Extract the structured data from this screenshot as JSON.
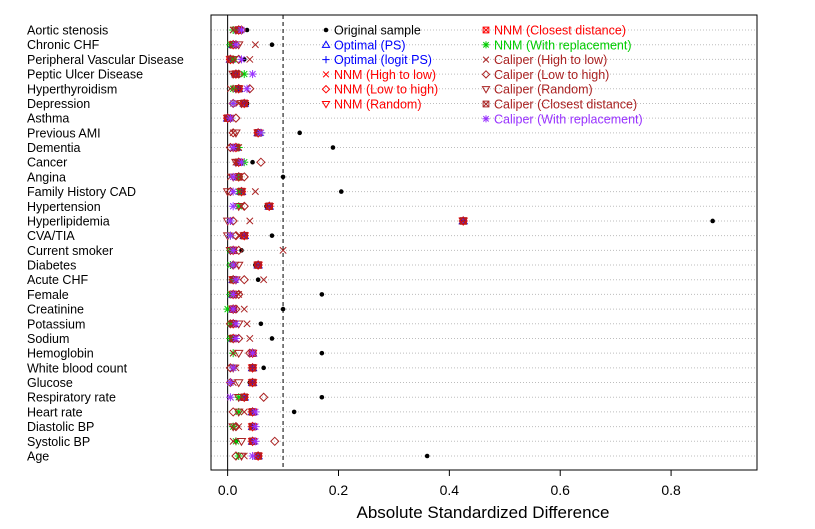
{
  "chart_data": {
    "type": "scatter",
    "title": "",
    "xlabel": "Absolute Standardized Difference",
    "ylabel": "",
    "xlim": [
      -0.03,
      0.955
    ],
    "x_ticks": [
      0.0,
      0.2,
      0.4,
      0.6,
      0.8
    ],
    "x_tick_labels": [
      "0.0",
      "0.2",
      "0.4",
      "0.6",
      "0.8"
    ],
    "reference_line": 0.1,
    "grid": "dotted horizontal",
    "legend_position": "top-right",
    "categories": [
      "Aortic stenosis",
      "Chronic CHF",
      "Peripheral Vascular Disease",
      "Peptic Ulcer Disease",
      "Hyperthyroidism",
      "Depression",
      "Asthma",
      "Previous AMI",
      "Dementia",
      "Cancer",
      "Angina",
      "Family History CAD",
      "Hypertension",
      "Hyperlipidemia",
      "CVA/TIA",
      "Current smoker",
      "Diabetes",
      "Acute CHF",
      "Female",
      "Creatinine",
      "Potassium",
      "Sodium",
      "Hemoglobin",
      "White blood count",
      "Glucose",
      "Respiratory rate",
      "Heart rate",
      "Diastolic BP",
      "Systolic BP",
      "Age"
    ],
    "series": [
      {
        "name": "Original sample",
        "marker": "dot",
        "color": "#000000",
        "values": [
          0.035,
          0.08,
          0.03,
          0.01,
          0.02,
          0.035,
          0.005,
          0.13,
          0.19,
          0.045,
          0.1,
          0.205,
          0.07,
          0.875,
          0.08,
          0.025,
          0.05,
          0.055,
          0.17,
          0.1,
          0.06,
          0.08,
          0.17,
          0.065,
          0.04,
          0.17,
          0.12,
          0.045,
          0.015,
          0.36
        ]
      },
      {
        "name": "Optimal (PS)",
        "marker": "triangle-up",
        "color": "#0000ff",
        "values": [
          0.02,
          0.01,
          0.005,
          0.015,
          0.02,
          0.03,
          0.0,
          0.055,
          0.015,
          0.02,
          0.02,
          0.025,
          0.075,
          0.425,
          0.03,
          0.01,
          0.055,
          0.01,
          0.01,
          0.01,
          0.01,
          0.01,
          0.045,
          0.045,
          0.045,
          0.03,
          0.045,
          0.045,
          0.045,
          0.055
        ]
      },
      {
        "name": "Optimal (logit PS)",
        "marker": "plus",
        "color": "#0000ff",
        "values": [
          0.02,
          0.01,
          0.005,
          0.015,
          0.02,
          0.03,
          0.0,
          0.055,
          0.015,
          0.02,
          0.02,
          0.025,
          0.075,
          0.425,
          0.03,
          0.01,
          0.055,
          0.01,
          0.01,
          0.01,
          0.01,
          0.01,
          0.045,
          0.045,
          0.045,
          0.03,
          0.045,
          0.045,
          0.045,
          0.055
        ]
      },
      {
        "name": "NNM (High to low)",
        "marker": "x",
        "color": "#ff0000",
        "values": [
          0.02,
          0.01,
          0.005,
          0.015,
          0.02,
          0.03,
          0.0,
          0.055,
          0.015,
          0.02,
          0.02,
          0.025,
          0.075,
          0.425,
          0.03,
          0.01,
          0.055,
          0.01,
          0.01,
          0.01,
          0.01,
          0.01,
          0.045,
          0.045,
          0.045,
          0.03,
          0.045,
          0.045,
          0.045,
          0.055
        ]
      },
      {
        "name": "NNM (Low to high)",
        "marker": "diamond",
        "color": "#ff0000",
        "values": [
          0.02,
          0.01,
          0.005,
          0.015,
          0.02,
          0.03,
          0.0,
          0.055,
          0.015,
          0.02,
          0.02,
          0.025,
          0.075,
          0.425,
          0.03,
          0.01,
          0.055,
          0.01,
          0.01,
          0.01,
          0.01,
          0.01,
          0.045,
          0.045,
          0.045,
          0.03,
          0.045,
          0.045,
          0.045,
          0.055
        ]
      },
      {
        "name": "NNM (Random)",
        "marker": "triangle-down",
        "color": "#ff0000",
        "values": [
          0.02,
          0.01,
          0.005,
          0.015,
          0.02,
          0.03,
          0.0,
          0.055,
          0.015,
          0.02,
          0.02,
          0.025,
          0.075,
          0.425,
          0.03,
          0.01,
          0.055,
          0.01,
          0.01,
          0.01,
          0.01,
          0.01,
          0.045,
          0.045,
          0.045,
          0.03,
          0.045,
          0.045,
          0.045,
          0.055
        ]
      },
      {
        "name": "NNM (Closest distance)",
        "marker": "square-x",
        "color": "#ff0000",
        "values": [
          0.02,
          0.01,
          0.005,
          0.015,
          0.02,
          0.03,
          0.0,
          0.055,
          0.015,
          0.02,
          0.02,
          0.025,
          0.075,
          0.425,
          0.03,
          0.01,
          0.055,
          0.01,
          0.01,
          0.01,
          0.01,
          0.01,
          0.045,
          0.045,
          0.045,
          0.03,
          0.045,
          0.045,
          0.045,
          0.055
        ]
      },
      {
        "name": "NNM (With replacement)",
        "marker": "asterisk",
        "color": "#00cc00",
        "values": [
          0.01,
          0.005,
          0.01,
          0.03,
          0.01,
          0.01,
          0.005,
          0.06,
          0.02,
          0.03,
          0.02,
          0.02,
          0.02,
          0.005,
          0.005,
          0.005,
          0.005,
          0.01,
          0.005,
          0.0,
          0.005,
          0.005,
          0.01,
          0.01,
          0.005,
          0.02,
          0.02,
          0.01,
          0.015,
          0.02
        ]
      },
      {
        "name": "Caliper (High to low)",
        "marker": "x",
        "color": "#aa2222",
        "values": [
          0.01,
          0.05,
          0.04,
          0.015,
          0.005,
          0.02,
          0.005,
          0.01,
          0.02,
          0.015,
          0.005,
          0.05,
          0.025,
          0.04,
          0.02,
          0.1,
          0.015,
          0.065,
          0.02,
          0.03,
          0.035,
          0.04,
          0.01,
          0.015,
          0.01,
          0.005,
          0.03,
          0.02,
          0.01,
          0.03
        ]
      },
      {
        "name": "Caliper (Low to high)",
        "marker": "diamond",
        "color": "#aa2222",
        "values": [
          0.025,
          0.015,
          0.02,
          0.02,
          0.04,
          0.01,
          0.015,
          0.01,
          0.005,
          0.06,
          0.03,
          0.005,
          0.03,
          0.01,
          0.015,
          0.02,
          0.01,
          0.03,
          0.02,
          0.015,
          0.005,
          0.02,
          0.04,
          0.005,
          0.005,
          0.065,
          0.01,
          0.015,
          0.085,
          0.015
        ]
      },
      {
        "name": "Caliper (Random)",
        "marker": "triangle-down",
        "color": "#aa2222",
        "values": [
          0.015,
          0.02,
          0.01,
          0.01,
          0.015,
          0.025,
          0.005,
          0.015,
          0.01,
          0.015,
          0.01,
          0.0,
          0.02,
          0.0,
          0.0,
          0.005,
          0.02,
          0.015,
          0.015,
          0.01,
          0.02,
          0.01,
          0.02,
          0.01,
          0.02,
          0.02,
          0.02,
          0.01,
          0.025,
          0.025
        ]
      },
      {
        "name": "Caliper (Closest distance)",
        "marker": "square-x",
        "color": "#aa2222",
        "values": [
          0.02,
          0.01,
          0.005,
          0.015,
          0.02,
          0.03,
          0.0,
          0.055,
          0.015,
          0.02,
          0.02,
          0.025,
          0.075,
          0.425,
          0.03,
          0.01,
          0.055,
          0.01,
          0.01,
          0.01,
          0.01,
          0.01,
          0.045,
          0.045,
          0.045,
          0.03,
          0.045,
          0.045,
          0.045,
          0.055
        ]
      },
      {
        "name": "Caliper (With replacement)",
        "marker": "asterisk",
        "color": "#9933ff",
        "values": [
          0.025,
          0.015,
          0.025,
          0.045,
          0.035,
          0.01,
          0.005,
          0.06,
          0.01,
          0.025,
          0.01,
          0.01,
          0.01,
          0.005,
          0.005,
          0.01,
          0.01,
          0.015,
          0.01,
          0.01,
          0.015,
          0.015,
          0.045,
          0.01,
          0.005,
          0.005,
          0.05,
          0.05,
          0.05,
          0.045
        ]
      }
    ]
  }
}
